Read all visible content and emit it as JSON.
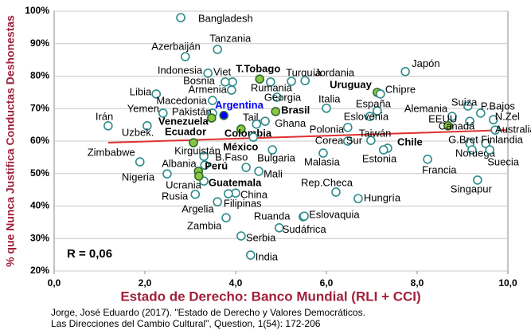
{
  "chart_data": {
    "type": "scatter",
    "xlabel": "Estado de Derecho: Banco Mundial (RLI + CCI)",
    "ylabel": "% que Nunca Justifica Conductas Deshonestas",
    "annotation": "R = 0,06",
    "source": [
      "Jorge, José Eduardo (2017). \"Estado de Derecho y Valores Democráticos.",
      "Las Direcciones del Cambio Cultural\", Question, 1(54): 172-206"
    ],
    "xlim": [
      0,
      10
    ],
    "ylim": [
      20,
      100
    ],
    "xticks": [
      {
        "value": 0,
        "label": "0,0"
      },
      {
        "value": 2,
        "label": "2,0"
      },
      {
        "value": 4,
        "label": "4,0"
      },
      {
        "value": 6,
        "label": "6,0"
      },
      {
        "value": 8,
        "label": "8,0"
      },
      {
        "value": 10,
        "label": "10,0"
      }
    ],
    "yticks": [
      {
        "value": 20,
        "label": "20%"
      },
      {
        "value": 30,
        "label": "30%"
      },
      {
        "value": 40,
        "label": "40%"
      },
      {
        "value": 50,
        "label": "50%"
      },
      {
        "value": 60,
        "label": "60%"
      },
      {
        "value": 70,
        "label": "70%"
      },
      {
        "value": 80,
        "label": "80%"
      },
      {
        "value": 90,
        "label": "90%"
      },
      {
        "value": 100,
        "label": "100%"
      }
    ],
    "grid": true,
    "marker_color": "#2e8b8b",
    "trendline": {
      "x": [
        1.19,
        9.96
      ],
      "y": [
        59.5,
        63.4
      ],
      "color": "#e03030"
    },
    "points": [
      {
        "label": "Bangladesh",
        "x": 2.79,
        "y": 98.0
      },
      {
        "label": "Tanzania",
        "x": 3.6,
        "y": 88.2
      },
      {
        "label": "Azerbaiján",
        "x": 2.89,
        "y": 86.0
      },
      {
        "label": "Indonesia",
        "x": 3.39,
        "y": 80.9
      },
      {
        "label": "Viet",
        "x": 3.93,
        "y": 78.2
      },
      {
        "label": "Bosnia",
        "x": 3.77,
        "y": 78.2
      },
      {
        "label": "T.Tobago",
        "x": 4.53,
        "y": 79.1,
        "color": "#8cc63f",
        "bold": true
      },
      {
        "label": "Turquía",
        "x": 5.23,
        "y": 78.4
      },
      {
        "label": "Jordania",
        "x": 5.53,
        "y": 78.6
      },
      {
        "label": "Japón",
        "x": 7.74,
        "y": 81.4
      },
      {
        "label": "Rumania",
        "x": 4.77,
        "y": 78.2
      },
      {
        "label": "Libia",
        "x": 2.25,
        "y": 74.5
      },
      {
        "label": "Armenia",
        "x": 3.91,
        "y": 75.7
      },
      {
        "label": "Macedonia",
        "x": 3.49,
        "y": 72.5
      },
      {
        "label": "Georgia",
        "x": 4.91,
        "y": 73.5
      },
      {
        "label": "Uruguay",
        "x": 7.12,
        "y": 75.0,
        "color": "#8cc63f",
        "bold": true
      },
      {
        "label": "Chipre",
        "x": 7.19,
        "y": 74.5
      },
      {
        "label": "Italia",
        "x": 6.0,
        "y": 70.1
      },
      {
        "label": "España",
        "x": 7.12,
        "y": 69.3
      },
      {
        "label": "Eslovenia",
        "x": 6.96,
        "y": 67.6
      },
      {
        "label": "Alemania",
        "x": 8.77,
        "y": 67.6
      },
      {
        "label": "Suiza",
        "x": 9.12,
        "y": 70.8
      },
      {
        "label": "P.Bajos",
        "x": 9.4,
        "y": 68.6
      },
      {
        "label": "N.Zel",
        "x": 9.68,
        "y": 66.6
      },
      {
        "label": "EEUU",
        "x": 9.16,
        "y": 66.1
      },
      {
        "label": "Canadá",
        "x": 8.68,
        "y": 64.7,
        "color": "#8cc63f"
      },
      {
        "label": "Australia",
        "x": 9.72,
        "y": 63.4
      },
      {
        "label": "Finlandia",
        "x": 9.51,
        "y": 59.3
      },
      {
        "label": "G.Bret",
        "x": 9.16,
        "y": 59.3
      },
      {
        "label": "Noruega",
        "x": 9.21,
        "y": 57.3
      },
      {
        "label": "Suecia",
        "x": 9.6,
        "y": 57.3
      },
      {
        "label": "Francia",
        "x": 8.23,
        "y": 54.4
      },
      {
        "label": "Singapur",
        "x": 9.33,
        "y": 48.0
      },
      {
        "label": "Chile",
        "x": 7.35,
        "y": 57.8,
        "bold": true
      },
      {
        "label": "Taiwán",
        "x": 6.98,
        "y": 60.2
      },
      {
        "label": "Estonia",
        "x": 7.26,
        "y": 57.3
      },
      {
        "label": "Polonia",
        "x": 6.47,
        "y": 64.2
      },
      {
        "label": "Corea Sur",
        "x": 6.47,
        "y": 60.0
      },
      {
        "label": "Malasia",
        "x": 5.93,
        "y": 56.3
      },
      {
        "label": "Rep.Checa",
        "x": 6.21,
        "y": 44.3
      },
      {
        "label": "Hungría",
        "x": 6.7,
        "y": 42.3
      },
      {
        "label": "Irán",
        "x": 1.19,
        "y": 64.7
      },
      {
        "label": "Uzbek.",
        "x": 2.05,
        "y": 64.7
      },
      {
        "label": "Yemen",
        "x": 2.4,
        "y": 68.6
      },
      {
        "label": "Pakistán",
        "x": 3.49,
        "y": 68.6
      },
      {
        "label": "Venezuela",
        "x": 3.47,
        "y": 67.1,
        "color": "#8cc63f",
        "bold": true
      },
      {
        "label": "Argentina",
        "x": 3.74,
        "y": 67.9,
        "color": "#0000ff",
        "bold": true
      },
      {
        "label": "Brasil",
        "x": 4.88,
        "y": 69.1,
        "color": "#8cc63f",
        "bold": true
      },
      {
        "label": "Tail.",
        "x": 4.65,
        "y": 66.1
      },
      {
        "label": "Ghana",
        "x": 4.46,
        "y": 65.2
      },
      {
        "label": "Colombia",
        "x": 4.12,
        "y": 63.7,
        "color": "#8cc63f",
        "bold": true
      },
      {
        "label": "Ecuador",
        "x": 3.07,
        "y": 59.5,
        "color": "#8cc63f",
        "bold": true
      },
      {
        "label": "México",
        "x": 4.39,
        "y": 61.2,
        "bold": true
      },
      {
        "label": "Bulgaria",
        "x": 4.81,
        "y": 57.3
      },
      {
        "label": "B.Faso",
        "x": 4.23,
        "y": 51.9
      },
      {
        "label": "Zimbabwe",
        "x": 1.89,
        "y": 53.6
      },
      {
        "label": "Kirguistán",
        "x": 3.3,
        "y": 55.3
      },
      {
        "label": "Albania",
        "x": 3.32,
        "y": 52.6
      },
      {
        "label": "Mali",
        "x": 4.51,
        "y": 50.7
      },
      {
        "label": "Perú",
        "x": 3.18,
        "y": 50.7,
        "color": "#8cc63f",
        "bold": true
      },
      {
        "label": "Nigeria",
        "x": 2.49,
        "y": 49.9
      },
      {
        "label": "Ucrania",
        "x": 3.3,
        "y": 47.7
      },
      {
        "label": "Guatemala",
        "x": 3.19,
        "y": 49.2,
        "color": "#8cc63f",
        "bold": true
      },
      {
        "label": "Rusia",
        "x": 3.11,
        "y": 43.6
      },
      {
        "label": "China",
        "x": 4.0,
        "y": 44.0
      },
      {
        "label": "Filipinas",
        "x": 3.84,
        "y": 43.8
      },
      {
        "label": "Argelia",
        "x": 3.6,
        "y": 41.3
      },
      {
        "label": "Zambia",
        "x": 3.79,
        "y": 36.4
      },
      {
        "label": "Ruanda",
        "x": 5.49,
        "y": 36.7
      },
      {
        "label": "Eslovaquia",
        "x": 5.51,
        "y": 36.9
      },
      {
        "label": "Sudáfrica",
        "x": 4.96,
        "y": 33.3
      },
      {
        "label": "Serbia",
        "x": 4.12,
        "y": 30.8
      },
      {
        "label": "India",
        "x": 4.33,
        "y": 24.9
      }
    ]
  }
}
